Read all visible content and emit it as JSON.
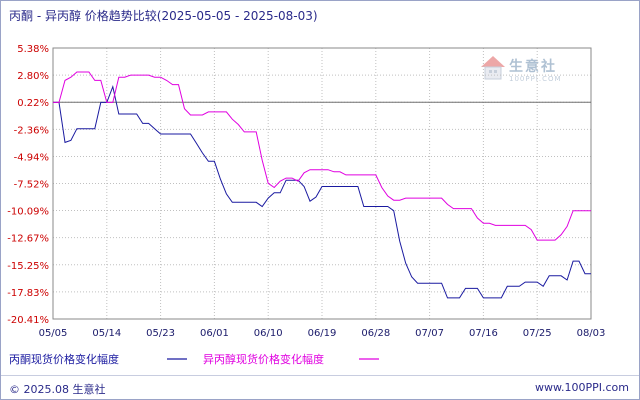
{
  "title": "丙酮 - 异丙醇 价格趋势比较(2025-05-05 - 2025-08-03)",
  "watermark": {
    "name": "生意社",
    "url": "100PPI.COM"
  },
  "footer": {
    "left": "© 2025.08 生意社",
    "right": "www.100PPI.com"
  },
  "colors": {
    "series1": "#1a1aa0",
    "series2": "#e000e0",
    "ytick": "#cc0000",
    "xtick": "#1a1a6a",
    "grid": "#c0c0c0",
    "zero_line": "#707070"
  },
  "chart_data": {
    "type": "line",
    "title": "丙酮 - 异丙醇 价格趋势比较(2025-05-05 - 2025-08-03)",
    "xlabel": "",
    "ylabel": "",
    "ylim": [
      -20.41,
      5.38
    ],
    "y_ticks": [
      "5.38%",
      "2.80%",
      "0.22%",
      "-2.36%",
      "-4.94%",
      "-7.52%",
      "-10.09%",
      "-12.67%",
      "-15.25%",
      "-17.83%",
      "-20.41%"
    ],
    "y_tick_values": [
      5.38,
      2.8,
      0.22,
      -2.36,
      -4.94,
      -7.52,
      -10.09,
      -12.67,
      -15.25,
      -17.83,
      -20.41
    ],
    "x_ticks": [
      "05/05",
      "05/14",
      "05/23",
      "06/01",
      "06/10",
      "06/19",
      "06/28",
      "07/07",
      "07/16",
      "07/25",
      "08/03"
    ],
    "x_tick_days": [
      0,
      9,
      18,
      27,
      36,
      45,
      54,
      63,
      72,
      81,
      90
    ],
    "grid": true,
    "legend_position": "bottom",
    "series": [
      {
        "name": "丙酮现货价格变化幅度",
        "points": [
          [
            0,
            0.2
          ],
          [
            1,
            0.2
          ],
          [
            2,
            -3.6
          ],
          [
            3,
            -3.4
          ],
          [
            4,
            -2.3
          ],
          [
            5,
            -2.3
          ],
          [
            6,
            -2.3
          ],
          [
            7,
            -2.3
          ],
          [
            8,
            0.2
          ],
          [
            9,
            0.2
          ],
          [
            10,
            1.7
          ],
          [
            11,
            -0.9
          ],
          [
            12,
            -0.9
          ],
          [
            13,
            -0.9
          ],
          [
            14,
            -0.9
          ],
          [
            15,
            -1.8
          ],
          [
            16,
            -1.8
          ],
          [
            17,
            -2.3
          ],
          [
            18,
            -2.8
          ],
          [
            19,
            -2.8
          ],
          [
            20,
            -2.8
          ],
          [
            21,
            -2.8
          ],
          [
            22,
            -2.8
          ],
          [
            23,
            -2.8
          ],
          [
            24,
            -3.7
          ],
          [
            25,
            -4.6
          ],
          [
            26,
            -5.4
          ],
          [
            27,
            -5.4
          ],
          [
            28,
            -7.1
          ],
          [
            29,
            -8.5
          ],
          [
            30,
            -9.3
          ],
          [
            31,
            -9.3
          ],
          [
            32,
            -9.3
          ],
          [
            33,
            -9.3
          ],
          [
            34,
            -9.3
          ],
          [
            35,
            -9.7
          ],
          [
            36,
            -8.9
          ],
          [
            37,
            -8.4
          ],
          [
            38,
            -8.4
          ],
          [
            39,
            -7.2
          ],
          [
            40,
            -7.2
          ],
          [
            41,
            -7.2
          ],
          [
            42,
            -7.8
          ],
          [
            43,
            -9.2
          ],
          [
            44,
            -8.8
          ],
          [
            45,
            -7.8
          ],
          [
            46,
            -7.8
          ],
          [
            47,
            -7.8
          ],
          [
            48,
            -7.8
          ],
          [
            49,
            -7.8
          ],
          [
            50,
            -7.8
          ],
          [
            51,
            -7.8
          ],
          [
            52,
            -9.7
          ],
          [
            53,
            -9.7
          ],
          [
            54,
            -9.7
          ],
          [
            55,
            -9.7
          ],
          [
            56,
            -9.7
          ],
          [
            57,
            -10.1
          ],
          [
            58,
            -13.0
          ],
          [
            59,
            -15.1
          ],
          [
            60,
            -16.4
          ],
          [
            61,
            -17.0
          ],
          [
            62,
            -17.0
          ],
          [
            63,
            -17.0
          ],
          [
            64,
            -17.0
          ],
          [
            65,
            -17.0
          ],
          [
            66,
            -18.4
          ],
          [
            67,
            -18.4
          ],
          [
            68,
            -18.4
          ],
          [
            69,
            -17.5
          ],
          [
            70,
            -17.5
          ],
          [
            71,
            -17.5
          ],
          [
            72,
            -18.4
          ],
          [
            73,
            -18.4
          ],
          [
            74,
            -18.4
          ],
          [
            75,
            -18.4
          ],
          [
            76,
            -17.3
          ],
          [
            77,
            -17.3
          ],
          [
            78,
            -17.3
          ],
          [
            79,
            -16.9
          ],
          [
            80,
            -16.9
          ],
          [
            81,
            -16.9
          ],
          [
            82,
            -17.3
          ],
          [
            83,
            -16.3
          ],
          [
            84,
            -16.3
          ],
          [
            85,
            -16.3
          ],
          [
            86,
            -16.7
          ],
          [
            87,
            -14.9
          ],
          [
            88,
            -14.9
          ],
          [
            89,
            -16.1
          ],
          [
            90,
            -16.1
          ]
        ]
      },
      {
        "name": "异丙醇现货价格变化幅度",
        "points": [
          [
            0,
            0.2
          ],
          [
            1,
            0.2
          ],
          [
            2,
            2.3
          ],
          [
            3,
            2.6
          ],
          [
            4,
            3.1
          ],
          [
            5,
            3.1
          ],
          [
            6,
            3.1
          ],
          [
            7,
            2.3
          ],
          [
            8,
            2.3
          ],
          [
            9,
            0.2
          ],
          [
            10,
            0.2
          ],
          [
            11,
            2.6
          ],
          [
            12,
            2.6
          ],
          [
            13,
            2.8
          ],
          [
            14,
            2.8
          ],
          [
            15,
            2.8
          ],
          [
            16,
            2.8
          ],
          [
            17,
            2.6
          ],
          [
            18,
            2.6
          ],
          [
            19,
            2.3
          ],
          [
            20,
            1.9
          ],
          [
            21,
            1.9
          ],
          [
            22,
            -0.4
          ],
          [
            23,
            -1.0
          ],
          [
            24,
            -1.0
          ],
          [
            25,
            -1.0
          ],
          [
            26,
            -0.7
          ],
          [
            27,
            -0.7
          ],
          [
            28,
            -0.7
          ],
          [
            29,
            -0.7
          ],
          [
            30,
            -1.4
          ],
          [
            31,
            -1.9
          ],
          [
            32,
            -2.6
          ],
          [
            33,
            -2.6
          ],
          [
            34,
            -2.6
          ],
          [
            35,
            -5.3
          ],
          [
            36,
            -7.5
          ],
          [
            37,
            -7.9
          ],
          [
            38,
            -7.3
          ],
          [
            39,
            -7.0
          ],
          [
            40,
            -7.0
          ],
          [
            41,
            -7.3
          ],
          [
            42,
            -6.5
          ],
          [
            43,
            -6.2
          ],
          [
            44,
            -6.2
          ],
          [
            45,
            -6.2
          ],
          [
            46,
            -6.2
          ],
          [
            47,
            -6.4
          ],
          [
            48,
            -6.4
          ],
          [
            49,
            -6.7
          ],
          [
            50,
            -6.7
          ],
          [
            51,
            -6.7
          ],
          [
            52,
            -6.7
          ],
          [
            53,
            -6.7
          ],
          [
            54,
            -6.7
          ],
          [
            55,
            -7.9
          ],
          [
            56,
            -8.7
          ],
          [
            57,
            -9.1
          ],
          [
            58,
            -9.1
          ],
          [
            59,
            -8.9
          ],
          [
            60,
            -8.9
          ],
          [
            61,
            -8.9
          ],
          [
            62,
            -8.9
          ],
          [
            63,
            -8.9
          ],
          [
            64,
            -8.9
          ],
          [
            65,
            -8.9
          ],
          [
            66,
            -9.5
          ],
          [
            67,
            -9.9
          ],
          [
            68,
            -9.9
          ],
          [
            69,
            -9.9
          ],
          [
            70,
            -9.9
          ],
          [
            71,
            -10.8
          ],
          [
            72,
            -11.3
          ],
          [
            73,
            -11.3
          ],
          [
            74,
            -11.5
          ],
          [
            75,
            -11.5
          ],
          [
            76,
            -11.5
          ],
          [
            77,
            -11.5
          ],
          [
            78,
            -11.5
          ],
          [
            79,
            -11.5
          ],
          [
            80,
            -11.9
          ],
          [
            81,
            -12.9
          ],
          [
            82,
            -12.9
          ],
          [
            83,
            -12.9
          ],
          [
            84,
            -12.9
          ],
          [
            85,
            -12.4
          ],
          [
            86,
            -11.6
          ],
          [
            87,
            -10.1
          ],
          [
            88,
            -10.1
          ],
          [
            89,
            -10.1
          ],
          [
            90,
            -10.1
          ]
        ]
      }
    ]
  }
}
